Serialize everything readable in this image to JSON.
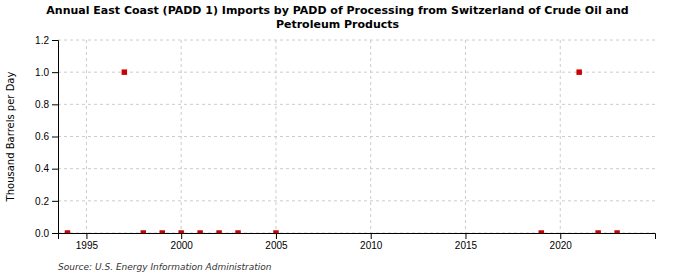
{
  "chart_data": {
    "type": "scatter",
    "title": "Annual East Coast (PADD 1) Imports by PADD of Processing from Switzerland of Crude Oil and\nPetroleum Products",
    "ylabel": "Thousand Barrels per Day",
    "annotations": [
      "Source: U.S. Energy Information Administration"
    ],
    "x": [
      1994,
      1997,
      1998,
      1999,
      2000,
      2001,
      2002,
      2003,
      2005,
      2019,
      2021,
      2022,
      2023
    ],
    "values": [
      0.0,
      1.0,
      0.0,
      0.0,
      0.0,
      0.0,
      0.0,
      0.0,
      0.0,
      0.0,
      1.0,
      0.0,
      0.0
    ],
    "color": "#cc0000",
    "marker": "square",
    "xlim": [
      1993.5,
      2025
    ],
    "xticks": [
      1995,
      2000,
      2005,
      2010,
      2015,
      2020
    ],
    "ylim": [
      0.0,
      1.2
    ],
    "yticks": [
      {
        "value": 0.0,
        "label": "0.0"
      },
      0.2,
      0.4,
      0.6,
      0.8,
      {
        "value": 1.0,
        "label": "1.0"
      },
      1.2
    ],
    "grid": true
  }
}
